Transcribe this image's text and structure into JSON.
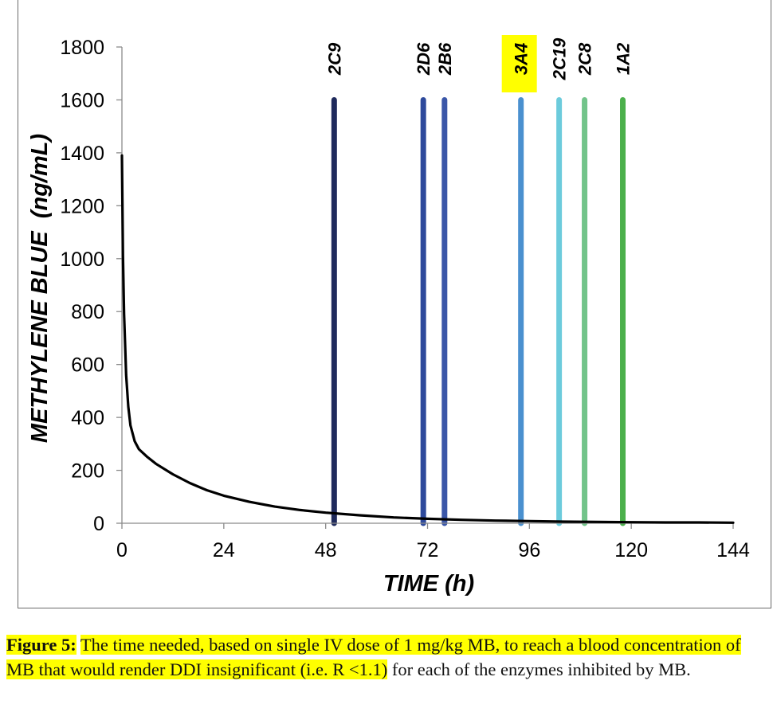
{
  "chart_data": {
    "type": "line",
    "xlabel": "TIME (h)",
    "ylabel": "METHYLENE BLUE  (ng/mL)",
    "xlim": [
      0,
      144
    ],
    "ylim": [
      0,
      1800
    ],
    "x_ticks": [
      0,
      24,
      48,
      72,
      96,
      120,
      144
    ],
    "y_ticks": [
      0,
      200,
      400,
      600,
      800,
      1000,
      1200,
      1400,
      1600,
      1800
    ],
    "grid": false,
    "series": [
      {
        "x": [
          0,
          0.25,
          0.5,
          1,
          1.5,
          2,
          3,
          4,
          6,
          8,
          12,
          16,
          20,
          24,
          30,
          36,
          42,
          48,
          56,
          64,
          72,
          80,
          88,
          96,
          104,
          112,
          120,
          128,
          136,
          144
        ],
        "y": [
          1390,
          1010,
          790,
          560,
          440,
          370,
          310,
          280,
          250,
          225,
          185,
          152,
          125,
          104,
          81,
          63,
          50,
          40,
          30,
          22,
          17,
          13,
          10,
          8,
          6,
          5,
          4,
          3,
          3,
          2
        ]
      }
    ],
    "vertical_lines": [
      {
        "label": "2C9",
        "x": 50,
        "y_top": 1600,
        "color": "#1f2a5c",
        "highlight": false
      },
      {
        "label": "2D6",
        "x": 71,
        "y_top": 1600,
        "color": "#2e4a9c",
        "highlight": false
      },
      {
        "label": "2B6",
        "x": 76,
        "y_top": 1600,
        "color": "#3a56a8",
        "highlight": false
      },
      {
        "label": "3A4",
        "x": 94,
        "y_top": 1600,
        "color": "#4a90cf",
        "highlight": true
      },
      {
        "label": "2C19",
        "x": 103,
        "y_top": 1600,
        "color": "#6ccbdc",
        "highlight": false
      },
      {
        "label": "2C8",
        "x": 109,
        "y_top": 1600,
        "color": "#72c48a",
        "highlight": false
      },
      {
        "label": "1A2",
        "x": 118,
        "y_top": 1600,
        "color": "#4bb04b",
        "highlight": false
      }
    ],
    "highlight_color": "#ffff00"
  },
  "caption": {
    "label": "Figure 5:",
    "highlighted_text": "The time needed, based on single IV dose of 1 mg/kg MB, to reach a blood concentration of MB that would render DDI insignificant (i.e. R <1.1)",
    "rest_text": " for each of the enzymes inhibited by MB."
  }
}
